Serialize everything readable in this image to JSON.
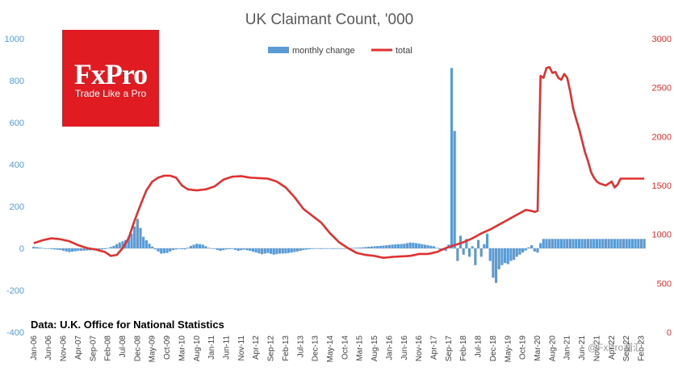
{
  "logo": {
    "brand": "FxPro",
    "tagline": "Trade Like a Pro",
    "color": "#e11b22"
  },
  "source": "Data: U.K. Office for National Statistics",
  "watermark": "@FxPro浦汇",
  "chart_data": {
    "type": "bar+line",
    "title": "UK Claimant Count, '000",
    "legend": [
      {
        "name": "monthly change",
        "kind": "bar",
        "color": "#5b9bd5"
      },
      {
        "name": "total",
        "kind": "line",
        "color": "#e03030"
      }
    ],
    "legend_position": "top-center",
    "grid": false,
    "y_left": {
      "ticks": [
        -400,
        -200,
        0,
        200,
        400,
        600,
        800,
        1000
      ],
      "range": [
        -400,
        1000
      ],
      "color": "#5b9bd5"
    },
    "y_right": {
      "ticks": [
        0,
        500,
        1000,
        1500,
        2000,
        2500,
        3000
      ],
      "range": [
        0,
        3000
      ],
      "color": "#e03030"
    },
    "x_ticks": [
      "Jan-06",
      "Jun-06",
      "Nov-06",
      "Apr-07",
      "Sep-07",
      "Feb-08",
      "Jul-08",
      "Dec-08",
      "May-09",
      "Oct-09",
      "Mar-10",
      "Aug-10",
      "Jan-11",
      "Jun-11",
      "Nov-11",
      "Apr-12",
      "Sep-12",
      "Feb-13",
      "Jul-13",
      "Dec-13",
      "May-14",
      "Oct-14",
      "Mar-15",
      "Aug-15",
      "Jan-16",
      "Jun-16",
      "Nov-16",
      "Apr-17",
      "Sep-17",
      "Feb-18",
      "Jul-18",
      "Dec-18",
      "May-19",
      "Oct-19",
      "Mar-20",
      "Aug-20",
      "Jan-21",
      "Jun-21",
      "Nov-21",
      "Apr-22",
      "Sep-22",
      "Feb-23"
    ],
    "x_start": "Jan-06",
    "series": [
      {
        "name": "monthly change",
        "kind": "bar",
        "axis": "left",
        "anchors": [
          [
            0,
            8
          ],
          [
            6,
            -4
          ],
          [
            9,
            -8
          ],
          [
            12,
            -18
          ],
          [
            15,
            -12
          ],
          [
            18,
            -10
          ],
          [
            21,
            -8
          ],
          [
            24,
            -4
          ],
          [
            27,
            12
          ],
          [
            29,
            28
          ],
          [
            31,
            40
          ],
          [
            33,
            70
          ],
          [
            35,
            140
          ],
          [
            37,
            55
          ],
          [
            39,
            22
          ],
          [
            41,
            -5
          ],
          [
            43,
            -25
          ],
          [
            45,
            -22
          ],
          [
            47,
            -8
          ],
          [
            49,
            -3
          ],
          [
            51,
            -5
          ],
          [
            53,
            12
          ],
          [
            55,
            22
          ],
          [
            57,
            18
          ],
          [
            59,
            3
          ],
          [
            61,
            -3
          ],
          [
            63,
            -12
          ],
          [
            65,
            -5
          ],
          [
            67,
            -3
          ],
          [
            69,
            -12
          ],
          [
            71,
            -6
          ],
          [
            73,
            -12
          ],
          [
            75,
            -20
          ],
          [
            77,
            -28
          ],
          [
            79,
            -22
          ],
          [
            81,
            -30
          ],
          [
            83,
            -25
          ],
          [
            85,
            -24
          ],
          [
            87,
            -20
          ],
          [
            89,
            -15
          ],
          [
            91,
            -8
          ],
          [
            93,
            -4
          ],
          [
            95,
            -2
          ],
          [
            97,
            -3
          ],
          [
            99,
            -1
          ],
          [
            101,
            -3
          ],
          [
            103,
            -2
          ],
          [
            105,
            -1
          ],
          [
            107,
            2
          ],
          [
            109,
            3
          ],
          [
            111,
            5
          ],
          [
            113,
            8
          ],
          [
            115,
            10
          ],
          [
            117,
            12
          ],
          [
            119,
            15
          ],
          [
            121,
            18
          ],
          [
            123,
            20
          ],
          [
            125,
            22
          ],
          [
            127,
            28
          ],
          [
            129,
            25
          ],
          [
            131,
            20
          ],
          [
            133,
            15
          ],
          [
            135,
            10
          ],
          [
            137,
            -5
          ],
          [
            139,
            -12
          ],
          [
            140,
            18
          ],
          [
            141,
            860
          ],
          [
            142,
            560
          ],
          [
            143,
            -60
          ],
          [
            144,
            60
          ],
          [
            145,
            -30
          ],
          [
            146,
            45
          ],
          [
            147,
            -40
          ],
          [
            148,
            10
          ],
          [
            149,
            -80
          ],
          [
            150,
            40
          ],
          [
            151,
            -40
          ],
          [
            152,
            20
          ],
          [
            153,
            70
          ],
          [
            154,
            -60
          ],
          [
            155,
            -140
          ],
          [
            156,
            -165
          ],
          [
            157,
            -100
          ],
          [
            158,
            -80
          ],
          [
            159,
            -70
          ],
          [
            160,
            -75
          ],
          [
            161,
            -60
          ],
          [
            162,
            -55
          ],
          [
            163,
            -40
          ],
          [
            164,
            -30
          ],
          [
            165,
            -20
          ],
          [
            166,
            -10
          ],
          [
            167,
            5
          ],
          [
            168,
            15
          ],
          [
            169,
            -15
          ],
          [
            170,
            -20
          ],
          [
            171,
            25
          ],
          [
            172,
            45
          ]
        ]
      },
      {
        "name": "total",
        "kind": "line",
        "axis": "right",
        "anchors": [
          [
            0,
            910
          ],
          [
            3,
            940
          ],
          [
            6,
            960
          ],
          [
            9,
            950
          ],
          [
            12,
            930
          ],
          [
            15,
            890
          ],
          [
            18,
            860
          ],
          [
            21,
            845
          ],
          [
            24,
            820
          ],
          [
            26,
            780
          ],
          [
            28,
            790
          ],
          [
            30,
            860
          ],
          [
            32,
            960
          ],
          [
            34,
            1140
          ],
          [
            36,
            1300
          ],
          [
            38,
            1450
          ],
          [
            40,
            1540
          ],
          [
            42,
            1580
          ],
          [
            44,
            1600
          ],
          [
            46,
            1600
          ],
          [
            48,
            1580
          ],
          [
            50,
            1500
          ],
          [
            52,
            1460
          ],
          [
            55,
            1450
          ],
          [
            58,
            1460
          ],
          [
            61,
            1490
          ],
          [
            64,
            1560
          ],
          [
            67,
            1590
          ],
          [
            70,
            1595
          ],
          [
            73,
            1580
          ],
          [
            76,
            1575
          ],
          [
            79,
            1570
          ],
          [
            82,
            1540
          ],
          [
            85,
            1480
          ],
          [
            88,
            1380
          ],
          [
            91,
            1260
          ],
          [
            94,
            1190
          ],
          [
            97,
            1120
          ],
          [
            100,
            1010
          ],
          [
            103,
            920
          ],
          [
            106,
            860
          ],
          [
            109,
            810
          ],
          [
            112,
            790
          ],
          [
            115,
            780
          ],
          [
            118,
            760
          ],
          [
            121,
            770
          ],
          [
            124,
            775
          ],
          [
            127,
            780
          ],
          [
            130,
            800
          ],
          [
            133,
            800
          ],
          [
            136,
            820
          ],
          [
            139,
            860
          ],
          [
            142,
            890
          ],
          [
            145,
            920
          ],
          [
            148,
            960
          ],
          [
            151,
            1010
          ],
          [
            154,
            1050
          ],
          [
            157,
            1100
          ],
          [
            160,
            1150
          ],
          [
            163,
            1200
          ],
          [
            166,
            1250
          ],
          [
            168,
            1240
          ],
          [
            169,
            1230
          ],
          [
            170,
            1240
          ],
          [
            171,
            2620
          ],
          [
            172,
            2600
          ],
          [
            173,
            2700
          ],
          [
            174,
            2710
          ],
          [
            175,
            2650
          ],
          [
            176,
            2660
          ],
          [
            177,
            2600
          ],
          [
            178,
            2580
          ],
          [
            179,
            2640
          ],
          [
            180,
            2600
          ],
          [
            181,
            2460
          ],
          [
            182,
            2290
          ],
          [
            183,
            2180
          ],
          [
            184,
            2080
          ],
          [
            185,
            1960
          ],
          [
            186,
            1840
          ],
          [
            187,
            1750
          ],
          [
            188,
            1640
          ],
          [
            189,
            1580
          ],
          [
            190,
            1540
          ],
          [
            191,
            1520
          ],
          [
            192,
            1510
          ],
          [
            193,
            1500
          ],
          [
            194,
            1520
          ],
          [
            195,
            1540
          ],
          [
            196,
            1480
          ],
          [
            197,
            1510
          ],
          [
            198,
            1570
          ]
        ]
      }
    ]
  }
}
